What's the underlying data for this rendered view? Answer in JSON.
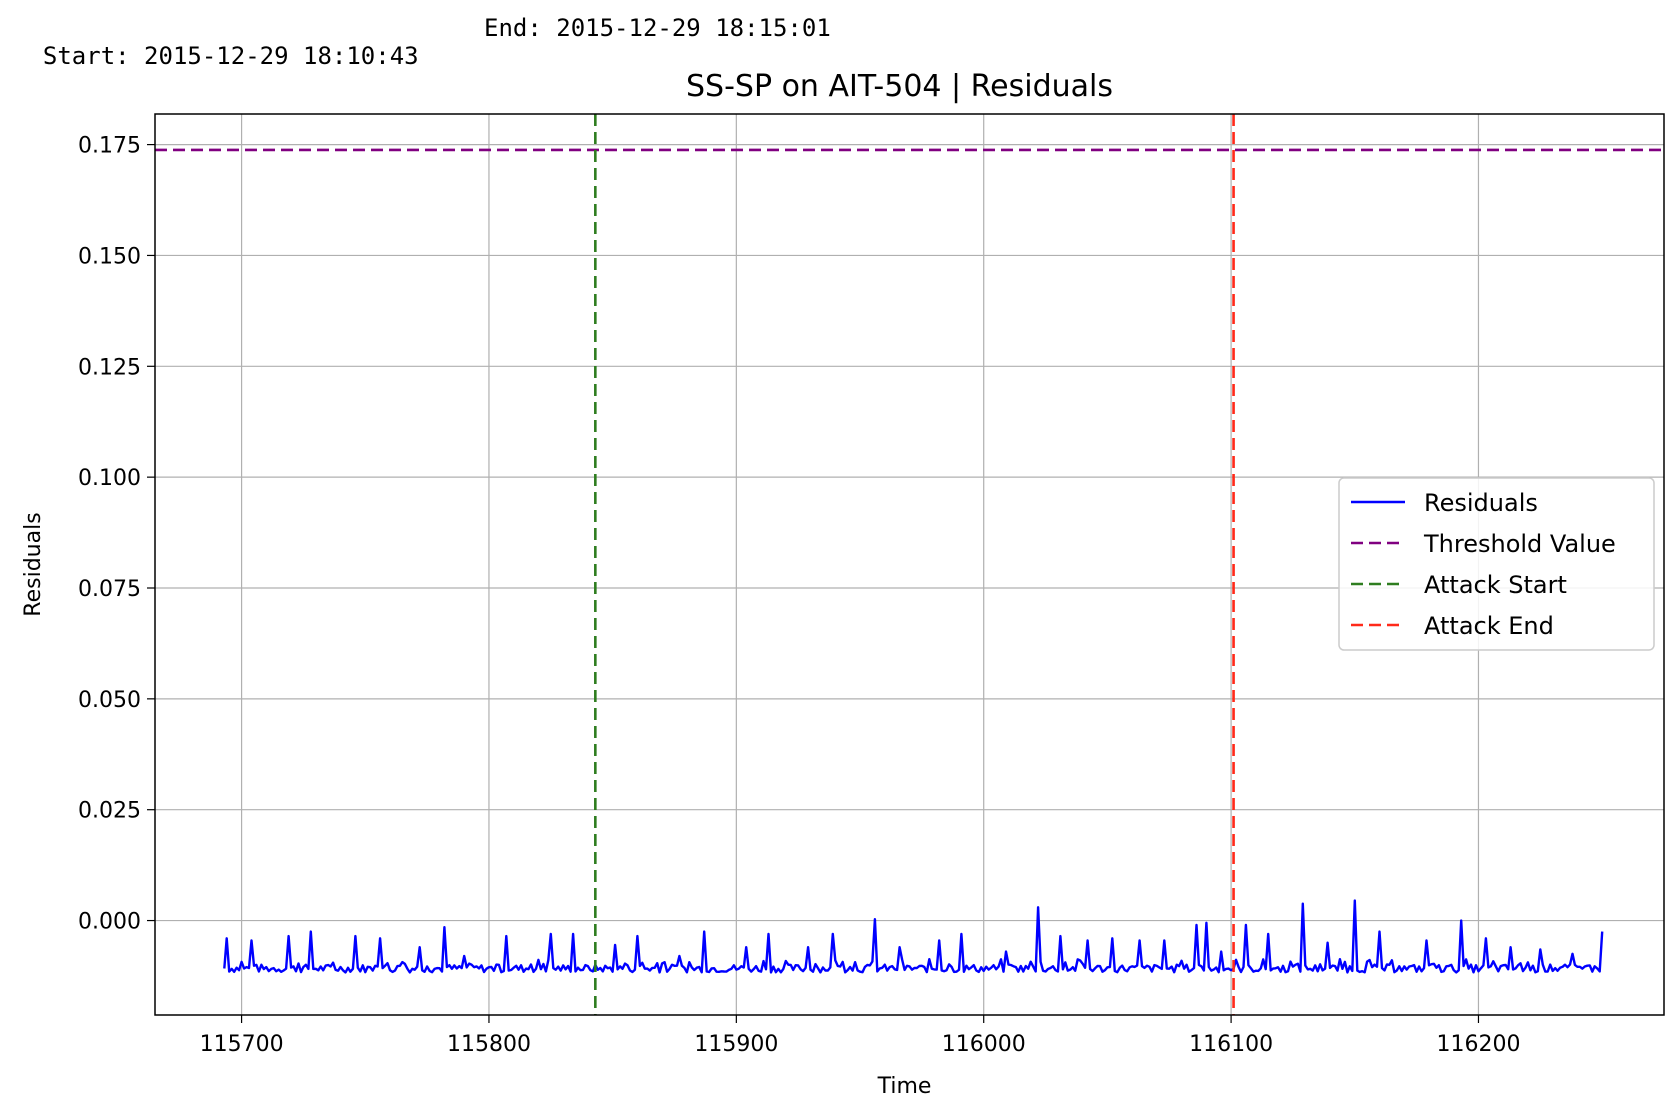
{
  "header": {
    "start_text": "Start: 2015-12-29 18:10:43",
    "end_text": "End: 2015-12-29 18:15:01"
  },
  "chart_data": {
    "type": "line",
    "title": "SS-SP  on  AIT-504  |  Residuals",
    "xlabel": "Time",
    "ylabel": "Residuals",
    "xlim": [
      115665,
      116275
    ],
    "ylim": [
      -0.0213,
      0.1819
    ],
    "x_ticks": [
      115700,
      115800,
      115900,
      116000,
      116100,
      116200
    ],
    "x_tick_labels": [
      "115700",
      "115800",
      "115900",
      "116000",
      "116100",
      "116200"
    ],
    "y_ticks": [
      0.0,
      0.025,
      0.05,
      0.075,
      0.1,
      0.125,
      0.15,
      0.175
    ],
    "y_tick_labels": [
      "0.000",
      "0.025",
      "0.050",
      "0.075",
      "0.100",
      "0.125",
      "0.150",
      "0.175"
    ],
    "grid": true,
    "legend_position": "center-right",
    "colors": {
      "residuals": "#0000ff",
      "threshold": "#800080",
      "attack_start": "#2e7d1f",
      "attack_end": "#ff2a1a"
    },
    "series": [
      {
        "name": "Residuals",
        "style": "solid",
        "x_start": 115693,
        "x_end": 116250,
        "baseline": -0.0108,
        "spikes": [
          [
            115694,
            -0.004
          ],
          [
            115704,
            -0.0045
          ],
          [
            115719,
            -0.0035
          ],
          [
            115728,
            -0.0025
          ],
          [
            115746,
            -0.0035
          ],
          [
            115756,
            -0.004
          ],
          [
            115772,
            -0.006
          ],
          [
            115782,
            -0.0015
          ],
          [
            115790,
            -0.008
          ],
          [
            115807,
            -0.0035
          ],
          [
            115825,
            -0.003
          ],
          [
            115834,
            -0.003
          ],
          [
            115851,
            -0.0055
          ],
          [
            115860,
            -0.0035
          ],
          [
            115877,
            -0.008
          ],
          [
            115887,
            -0.0025
          ],
          [
            115904,
            -0.006
          ],
          [
            115913,
            -0.003
          ],
          [
            115929,
            -0.006
          ],
          [
            115939,
            -0.003
          ],
          [
            115956,
            0.0003
          ],
          [
            115966,
            -0.006
          ],
          [
            115982,
            -0.0045
          ],
          [
            115991,
            -0.003
          ],
          [
            116009,
            -0.007
          ],
          [
            116022,
            0.003
          ],
          [
            116031,
            -0.0035
          ],
          [
            116042,
            -0.0045
          ],
          [
            116052,
            -0.004
          ],
          [
            116063,
            -0.0045
          ],
          [
            116073,
            -0.0045
          ],
          [
            116086,
            -0.001
          ],
          [
            116090,
            -0.0005
          ],
          [
            116096,
            -0.007
          ],
          [
            116106,
            -0.001
          ],
          [
            116115,
            -0.003
          ],
          [
            116129,
            0.0038
          ],
          [
            116139,
            -0.005
          ],
          [
            116150,
            0.0045
          ],
          [
            116160,
            -0.0025
          ],
          [
            116179,
            -0.0045
          ],
          [
            116193,
            0.0
          ],
          [
            116203,
            -0.004
          ],
          [
            116213,
            -0.006
          ],
          [
            116225,
            -0.0065
          ],
          [
            116238,
            -0.0075
          ],
          [
            116250,
            -0.0025
          ]
        ]
      },
      {
        "name": "Threshold Value",
        "style": "dashed",
        "y": 0.1738
      },
      {
        "name": "Attack Start",
        "style": "dashed",
        "x": 115843
      },
      {
        "name": "Attack End",
        "style": "dashed",
        "x": 116101
      }
    ]
  }
}
